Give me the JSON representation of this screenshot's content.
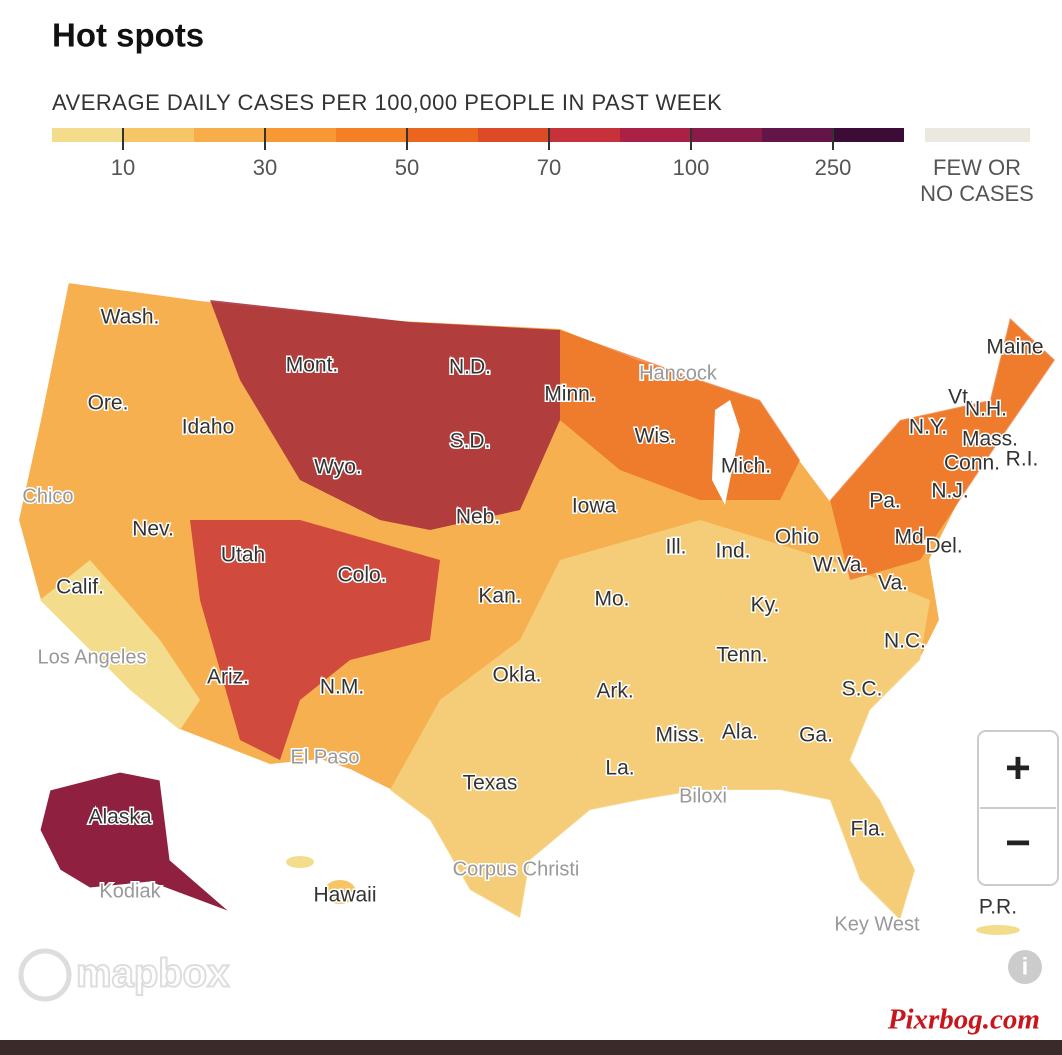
{
  "header": {
    "title": "Hot spots"
  },
  "legend": {
    "title": "AVERAGE DAILY CASES PER 100,000 PEOPLE IN PAST WEEK",
    "colors": [
      "#f3dd8c",
      "#f6c565",
      "#f7ad4a",
      "#f79834",
      "#f47f24",
      "#ec651e",
      "#dc4a28",
      "#c7323a",
      "#ab2145",
      "#891b49",
      "#641547",
      "#3d0c36"
    ],
    "ticks": [
      10,
      30,
      50,
      70,
      100,
      250
    ],
    "no_data": {
      "color": "#ebe8df",
      "label": [
        "FEW OR",
        "NO CASES"
      ]
    }
  },
  "map": {
    "state_labels": [
      "Wash.",
      "Ore.",
      "Idaho",
      "Mont.",
      "Wyo.",
      "N.D.",
      "S.D.",
      "Neb.",
      "Minn.",
      "Wis.",
      "Mich.",
      "Iowa",
      "Nev.",
      "Utah",
      "Colo.",
      "Kan.",
      "Mo.",
      "Ill.",
      "Ind.",
      "Ohio",
      "Pa.",
      "N.Y.",
      "Vt.",
      "N.H.",
      "Maine",
      "Mass.",
      "Conn.",
      "R.I.",
      "N.J.",
      "Md.",
      "Del.",
      "W.Va.",
      "Va.",
      "Ky.",
      "Tenn.",
      "N.C.",
      "S.C.",
      "Ga.",
      "Ala.",
      "Miss.",
      "La.",
      "Ark.",
      "Okla.",
      "Texas",
      "N.M.",
      "Ariz.",
      "Calif.",
      "Alaska",
      "Hawaii",
      "Fla."
    ],
    "city_labels": [
      "Hancock",
      "Chico",
      "Los Angeles",
      "El Paso",
      "Biloxi",
      "Corpus Christi",
      "Kodiak",
      "Key West"
    ],
    "territory_label": "P.R."
  },
  "controls": {
    "zoom_in": "+",
    "zoom_out": "−",
    "info": "i"
  },
  "attribution": "mapbox",
  "watermark": "Pixrbog.com"
}
